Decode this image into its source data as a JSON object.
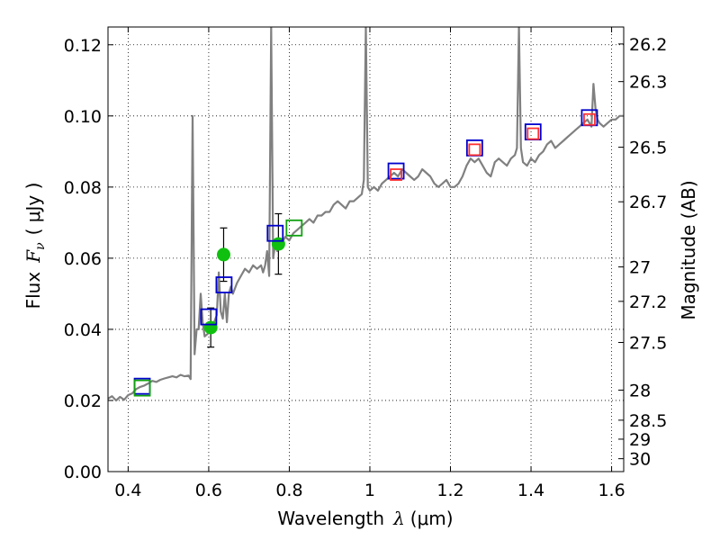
{
  "chart_data": {
    "type": "scatter",
    "title": "",
    "xlabel": {
      "prefix": "Wavelength",
      "symbol": "λ",
      "unit": "(μm)"
    },
    "ylabel": {
      "prefix": "Flux",
      "symbol": "F",
      "subscript": "ν",
      "unit": "( μJy )"
    },
    "y2label": "Magnitude (AB)",
    "xlim": [
      0.35,
      1.63
    ],
    "ylim": [
      0.0,
      0.125
    ],
    "grid": true,
    "x_ticks": [
      0.4,
      0.6,
      0.8,
      1.0,
      1.2,
      1.4,
      1.6
    ],
    "x_tick_labels": [
      "0.4",
      "0.6",
      "0.8",
      "1",
      "1.2",
      "1.4",
      "1.6"
    ],
    "y_ticks": [
      0.0,
      0.02,
      0.04,
      0.06,
      0.08,
      0.1,
      0.12
    ],
    "y_tick_labels": [
      "0.00",
      "0.02",
      "0.04",
      "0.06",
      "0.08",
      "0.10",
      "0.12"
    ],
    "mag_ticks": [
      {
        "value": 26.2,
        "label": "26.2"
      },
      {
        "value": 26.3,
        "label": "26.3"
      },
      {
        "value": 26.5,
        "label": "26.5"
      },
      {
        "value": 26.7,
        "label": "26.7"
      },
      {
        "value": 27.0,
        "label": "27"
      },
      {
        "value": 27.2,
        "label": "27.2"
      },
      {
        "value": 27.5,
        "label": "27.5"
      },
      {
        "value": 28.0,
        "label": "28"
      },
      {
        "value": 28.5,
        "label": "28.5"
      },
      {
        "value": 29.0,
        "label": "29"
      },
      {
        "value": 30.0,
        "label": "30"
      }
    ],
    "series": [
      {
        "name": "model-sed",
        "kind": "line",
        "color": "#808080",
        "x": [
          0.35,
          0.36,
          0.37,
          0.38,
          0.39,
          0.4,
          0.41,
          0.42,
          0.43,
          0.44,
          0.45,
          0.46,
          0.47,
          0.48,
          0.49,
          0.5,
          0.51,
          0.52,
          0.53,
          0.54,
          0.55,
          0.555,
          0.56,
          0.565,
          0.57,
          0.575,
          0.58,
          0.585,
          0.59,
          0.6,
          0.61,
          0.62,
          0.625,
          0.63,
          0.635,
          0.64,
          0.645,
          0.65,
          0.655,
          0.66,
          0.67,
          0.68,
          0.69,
          0.7,
          0.71,
          0.72,
          0.73,
          0.735,
          0.74,
          0.745,
          0.75,
          0.755,
          0.76,
          0.765,
          0.77,
          0.78,
          0.79,
          0.8,
          0.81,
          0.82,
          0.83,
          0.84,
          0.85,
          0.86,
          0.87,
          0.88,
          0.89,
          0.9,
          0.91,
          0.92,
          0.93,
          0.94,
          0.95,
          0.96,
          0.97,
          0.98,
          0.985,
          0.99,
          0.995,
          1.0,
          1.01,
          1.02,
          1.03,
          1.04,
          1.05,
          1.06,
          1.07,
          1.08,
          1.09,
          1.1,
          1.11,
          1.12,
          1.13,
          1.14,
          1.15,
          1.16,
          1.17,
          1.18,
          1.19,
          1.2,
          1.21,
          1.22,
          1.23,
          1.24,
          1.25,
          1.26,
          1.27,
          1.28,
          1.29,
          1.3,
          1.31,
          1.32,
          1.33,
          1.34,
          1.35,
          1.36,
          1.365,
          1.37,
          1.375,
          1.38,
          1.39,
          1.4,
          1.41,
          1.42,
          1.43,
          1.44,
          1.45,
          1.46,
          1.47,
          1.48,
          1.49,
          1.5,
          1.51,
          1.52,
          1.53,
          1.54,
          1.55,
          1.555,
          1.56,
          1.565,
          1.57,
          1.58,
          1.59,
          1.6,
          1.61,
          1.62,
          1.63
        ],
        "y": [
          0.0205,
          0.0212,
          0.02,
          0.021,
          0.0202,
          0.0215,
          0.022,
          0.0232,
          0.0238,
          0.0242,
          0.0248,
          0.0255,
          0.0252,
          0.0258,
          0.0262,
          0.0265,
          0.0268,
          0.0265,
          0.0272,
          0.0268,
          0.027,
          0.026,
          0.1,
          0.033,
          0.04,
          0.04,
          0.05,
          0.042,
          0.038,
          0.039,
          0.041,
          0.044,
          0.056,
          0.045,
          0.043,
          0.05,
          0.042,
          0.05,
          0.052,
          0.05,
          0.053,
          0.055,
          0.057,
          0.056,
          0.058,
          0.057,
          0.058,
          0.056,
          0.058,
          0.062,
          0.055,
          0.125,
          0.06,
          0.064,
          0.062,
          0.064,
          0.066,
          0.065,
          0.067,
          0.068,
          0.069,
          0.07,
          0.071,
          0.07,
          0.072,
          0.072,
          0.073,
          0.073,
          0.075,
          0.076,
          0.075,
          0.074,
          0.076,
          0.076,
          0.077,
          0.078,
          0.082,
          0.125,
          0.08,
          0.079,
          0.08,
          0.079,
          0.081,
          0.082,
          0.083,
          0.084,
          0.083,
          0.085,
          0.084,
          0.083,
          0.082,
          0.083,
          0.085,
          0.084,
          0.083,
          0.081,
          0.08,
          0.081,
          0.082,
          0.08,
          0.08,
          0.081,
          0.083,
          0.086,
          0.088,
          0.087,
          0.088,
          0.086,
          0.084,
          0.083,
          0.087,
          0.088,
          0.087,
          0.086,
          0.088,
          0.089,
          0.091,
          0.125,
          0.091,
          0.087,
          0.086,
          0.088,
          0.087,
          0.089,
          0.09,
          0.092,
          0.093,
          0.091,
          0.092,
          0.093,
          0.094,
          0.095,
          0.096,
          0.097,
          0.098,
          0.099,
          0.097,
          0.109,
          0.102,
          0.099,
          0.098,
          0.097,
          0.098,
          0.099,
          0.099,
          0.1,
          0.1
        ]
      },
      {
        "name": "observed-flux",
        "kind": "points",
        "color": "#10c010",
        "x": [
          0.605,
          0.637,
          0.773
        ],
        "y": [
          0.0405,
          0.061,
          0.064
        ],
        "yerr": [
          0.0055,
          0.0075,
          0.0085
        ]
      },
      {
        "name": "model-flux-blue",
        "kind": "open-squares",
        "color": "#0000cc",
        "x": [
          0.435,
          0.6,
          0.638,
          0.765,
          1.065,
          1.26,
          1.405,
          1.545
        ],
        "y": [
          0.024,
          0.0435,
          0.0525,
          0.067,
          0.0845,
          0.091,
          0.0955,
          0.0995
        ]
      },
      {
        "name": "model-flux-green",
        "kind": "open-squares",
        "color": "#10a010",
        "x": [
          0.435,
          0.812
        ],
        "y": [
          0.0235,
          0.0685
        ]
      },
      {
        "name": "model-flux-red",
        "kind": "open-squares",
        "color": "#ff3030",
        "x": [
          1.065,
          1.26,
          1.405,
          1.545
        ],
        "y": [
          0.0835,
          0.0905,
          0.095,
          0.099
        ]
      }
    ]
  }
}
